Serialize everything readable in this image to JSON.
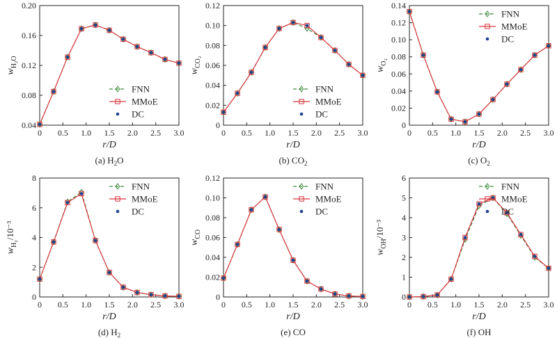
{
  "figure": {
    "legend_labels": [
      "FNN",
      "MMoE",
      "DC"
    ],
    "colors": {
      "FNN": "#3a8a3a",
      "MMoE": "#d9363e",
      "DC": "#1f3f8f"
    },
    "x_axis_label": "r/D"
  },
  "chart_data": [
    {
      "id": "h2o",
      "type": "line",
      "caption_prefix": "(a) H",
      "caption_sub": "2",
      "caption_suffix": "O",
      "ylabel_main": "w",
      "ylabel_sub": "H₂O",
      "ylabel_suffix": "",
      "x": [
        0,
        0.3,
        0.6,
        0.9,
        1.2,
        1.5,
        1.8,
        2.1,
        2.4,
        2.7,
        3.0
      ],
      "xlim": [
        0,
        3.0
      ],
      "xticks": [
        0,
        0.5,
        1.0,
        1.5,
        2.0,
        2.5,
        3.0
      ],
      "xtick_labels": [
        "0",
        "0.5",
        "1.0",
        "1.5",
        "2.0",
        "2.5",
        "3.0"
      ],
      "ylim": [
        0.04,
        0.2
      ],
      "yticks": [
        0.04,
        0.08,
        0.12,
        0.16,
        0.2
      ],
      "ytick_labels": [
        "0.04",
        "0.08",
        "0.12",
        "0.16",
        "0.20"
      ],
      "legend_position": "bottom-right",
      "series": [
        {
          "name": "FNN",
          "values": [
            0.041,
            0.085,
            0.131,
            0.169,
            0.174,
            0.167,
            0.155,
            0.145,
            0.137,
            0.128,
            0.123
          ]
        },
        {
          "name": "MMoE",
          "values": [
            0.041,
            0.085,
            0.131,
            0.169,
            0.174,
            0.167,
            0.155,
            0.145,
            0.137,
            0.128,
            0.123
          ]
        },
        {
          "name": "DC",
          "values": [
            0.041,
            0.085,
            0.131,
            0.169,
            0.174,
            0.167,
            0.155,
            0.145,
            0.137,
            0.128,
            0.123
          ]
        }
      ]
    },
    {
      "id": "co2",
      "type": "line",
      "caption_prefix": "(b) CO",
      "caption_sub": "2",
      "caption_suffix": "",
      "ylabel_main": "w",
      "ylabel_sub": "CO₂",
      "ylabel_suffix": "",
      "x": [
        0,
        0.3,
        0.6,
        0.9,
        1.2,
        1.5,
        1.8,
        2.1,
        2.4,
        2.7,
        3.0
      ],
      "xlim": [
        0,
        3.0
      ],
      "xticks": [
        0,
        0.5,
        1.0,
        1.5,
        2.0,
        2.5,
        3.0
      ],
      "xtick_labels": [
        "0",
        "0.5",
        "1.0",
        "1.5",
        "2.0",
        "2.5",
        "3.0"
      ],
      "ylim": [
        0,
        0.12
      ],
      "yticks": [
        0,
        0.02,
        0.04,
        0.06,
        0.08,
        0.1,
        0.12
      ],
      "ytick_labels": [
        "0",
        "0.02",
        "0.04",
        "0.06",
        "0.08",
        "0.10",
        "0.12"
      ],
      "legend_position": "bottom-right",
      "series": [
        {
          "name": "FNN",
          "values": [
            0.013,
            0.032,
            0.053,
            0.078,
            0.097,
            0.103,
            0.097,
            0.088,
            0.075,
            0.061,
            0.05
          ]
        },
        {
          "name": "MMoE",
          "values": [
            0.013,
            0.032,
            0.053,
            0.078,
            0.097,
            0.103,
            0.1,
            0.088,
            0.075,
            0.061,
            0.05
          ]
        },
        {
          "name": "DC",
          "values": [
            0.013,
            0.032,
            0.053,
            0.078,
            0.097,
            0.103,
            0.1,
            0.088,
            0.075,
            0.061,
            0.05
          ]
        }
      ]
    },
    {
      "id": "o2",
      "type": "line",
      "caption_prefix": "(c) O",
      "caption_sub": "2",
      "caption_suffix": "",
      "ylabel_main": "w",
      "ylabel_sub": "O₂",
      "ylabel_suffix": "",
      "x": [
        0,
        0.3,
        0.6,
        0.9,
        1.2,
        1.5,
        1.8,
        2.1,
        2.4,
        2.7,
        3.0
      ],
      "xlim": [
        0,
        3.0
      ],
      "xticks": [
        0,
        0.5,
        1.0,
        1.5,
        2.0,
        2.5,
        3.0
      ],
      "xtick_labels": [
        "0",
        "0.5",
        "1.0",
        "1.5",
        "2.0",
        "2.5",
        "3.0"
      ],
      "ylim": [
        0,
        0.14
      ],
      "yticks": [
        0,
        0.02,
        0.04,
        0.06,
        0.08,
        0.1,
        0.12,
        0.14
      ],
      "ytick_labels": [
        "0",
        "0.02",
        "0.04",
        "0.06",
        "0.08",
        "0.10",
        "0.12",
        "0.14"
      ],
      "legend_position": "top-right",
      "series": [
        {
          "name": "FNN",
          "values": [
            0.133,
            0.082,
            0.039,
            0.007,
            0.004,
            0.013,
            0.03,
            0.048,
            0.065,
            0.082,
            0.093
          ]
        },
        {
          "name": "MMoE",
          "values": [
            0.133,
            0.082,
            0.039,
            0.007,
            0.004,
            0.013,
            0.03,
            0.048,
            0.065,
            0.082,
            0.093
          ]
        },
        {
          "name": "DC",
          "values": [
            0.133,
            0.082,
            0.039,
            0.007,
            0.004,
            0.013,
            0.03,
            0.048,
            0.065,
            0.082,
            0.093
          ]
        }
      ]
    },
    {
      "id": "h2",
      "type": "line",
      "caption_prefix": "(d) H",
      "caption_sub": "2",
      "caption_suffix": "",
      "ylabel_main": "w",
      "ylabel_sub": "H₂",
      "ylabel_suffix": "/10⁻³",
      "x": [
        0,
        0.3,
        0.6,
        0.9,
        1.2,
        1.5,
        1.8,
        2.1,
        2.4,
        2.7,
        3.0
      ],
      "xlim": [
        0,
        3.0
      ],
      "xticks": [
        0,
        0.5,
        1.0,
        1.5,
        2.0,
        2.5,
        3.0
      ],
      "xtick_labels": [
        "0",
        "0.5",
        "1.0",
        "1.5",
        "2.0",
        "2.5",
        "3.0"
      ],
      "ylim": [
        0,
        8
      ],
      "yticks": [
        0,
        2,
        4,
        6,
        8
      ],
      "ytick_labels": [
        "0",
        "2",
        "4",
        "6",
        "8"
      ],
      "legend_position": "top-right",
      "series": [
        {
          "name": "FNN",
          "values": [
            1.2,
            3.7,
            6.4,
            7.05,
            3.8,
            1.65,
            0.65,
            0.3,
            0.15,
            0.07,
            0.04
          ]
        },
        {
          "name": "MMoE",
          "values": [
            1.2,
            3.7,
            6.35,
            6.95,
            3.8,
            1.65,
            0.65,
            0.3,
            0.15,
            0.07,
            0.04
          ]
        },
        {
          "name": "DC",
          "values": [
            1.2,
            3.7,
            6.35,
            6.95,
            3.8,
            1.65,
            0.65,
            0.3,
            0.15,
            0.07,
            0.04
          ]
        }
      ]
    },
    {
      "id": "co",
      "type": "line",
      "caption_prefix": "(e) CO",
      "caption_sub": "",
      "caption_suffix": "",
      "ylabel_main": "w",
      "ylabel_sub": "CO",
      "ylabel_suffix": "",
      "x": [
        0,
        0.3,
        0.6,
        0.9,
        1.2,
        1.5,
        1.8,
        2.1,
        2.4,
        2.7,
        3.0
      ],
      "xlim": [
        0,
        3.0
      ],
      "xticks": [
        0,
        0.5,
        1.0,
        1.5,
        2.0,
        2.5,
        3.0
      ],
      "xtick_labels": [
        "0",
        "0.5",
        "1.0",
        "1.5",
        "2.0",
        "2.5",
        "3.0"
      ],
      "ylim": [
        0,
        0.12
      ],
      "yticks": [
        0,
        0.02,
        0.04,
        0.06,
        0.08,
        0.1,
        0.12
      ],
      "ytick_labels": [
        "0",
        "0.02",
        "0.04",
        "0.06",
        "0.08",
        "0.10",
        "0.12"
      ],
      "legend_position": "top-right",
      "series": [
        {
          "name": "FNN",
          "values": [
            0.019,
            0.053,
            0.088,
            0.101,
            0.068,
            0.037,
            0.016,
            0.008,
            0.003,
            0.001,
            0.0005
          ]
        },
        {
          "name": "MMoE",
          "values": [
            0.019,
            0.053,
            0.088,
            0.101,
            0.068,
            0.037,
            0.016,
            0.008,
            0.003,
            0.001,
            0.0005
          ]
        },
        {
          "name": "DC",
          "values": [
            0.019,
            0.053,
            0.088,
            0.101,
            0.068,
            0.037,
            0.016,
            0.008,
            0.003,
            0.001,
            0.0005
          ]
        }
      ]
    },
    {
      "id": "oh",
      "type": "line",
      "caption_prefix": "(f) OH",
      "caption_sub": "",
      "caption_suffix": "",
      "ylabel_main": "w",
      "ylabel_sub": "OH",
      "ylabel_suffix": "/10⁻³",
      "x": [
        0,
        0.3,
        0.6,
        0.9,
        1.2,
        1.5,
        1.8,
        2.1,
        2.4,
        2.7,
        3.0
      ],
      "xlim": [
        0,
        3.0
      ],
      "xticks": [
        0,
        0.5,
        1.0,
        1.5,
        2.0,
        2.5,
        3.0
      ],
      "xtick_labels": [
        "0",
        "0.5",
        "1.0",
        "1.5",
        "2.0",
        "2.5",
        "3.0"
      ],
      "ylim": [
        0,
        6
      ],
      "yticks": [
        0,
        1,
        2,
        3,
        4,
        5,
        6
      ],
      "ytick_labels": [
        "0",
        "1",
        "2",
        "3",
        "4",
        "5",
        "6"
      ],
      "legend_position": "top-right",
      "series": [
        {
          "name": "FNN",
          "values": [
            0.0,
            0.02,
            0.1,
            0.9,
            2.9,
            4.6,
            5.0,
            4.2,
            3.1,
            2.0,
            1.45
          ]
        },
        {
          "name": "MMoE",
          "values": [
            0.0,
            0.02,
            0.1,
            0.9,
            3.0,
            4.7,
            5.0,
            4.25,
            3.15,
            2.05,
            1.45
          ]
        },
        {
          "name": "DC",
          "values": [
            0.0,
            0.02,
            0.1,
            0.9,
            3.0,
            4.7,
            5.0,
            4.25,
            3.15,
            2.05,
            1.45
          ]
        }
      ]
    }
  ]
}
